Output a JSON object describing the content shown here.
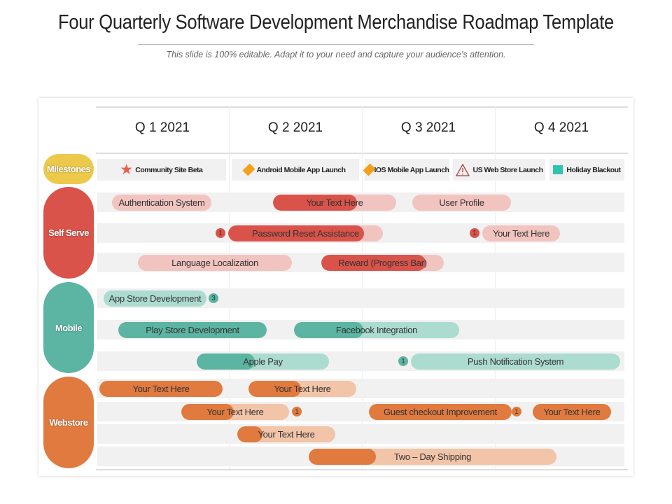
{
  "title": "Four Quarterly Software Development Merchandise Roadmap Template",
  "subtitle": "This slide is 100% editable. Adapt it to your need and capture your audience’s attention.",
  "quarters": [
    "Q 1 2021",
    "Q 2 2021",
    "Q 3 2021",
    "Q 4 2021"
  ],
  "colors": {
    "milestones": "#ecc94b",
    "self_serve": "#d9534a",
    "self_serve_light": "#f2c4c0",
    "mobile": "#5bb5a2",
    "mobile_light": "#acdcd0",
    "webstore": "#e07a3f",
    "webstore_light": "#f2c4a8"
  },
  "categories": {
    "milestones": "Milestones",
    "self_serve": "Self Serve",
    "mobile": "Mobile",
    "webstore": "Webstore"
  },
  "milestones": [
    {
      "label": "Community Site Beta",
      "icon": "star-icon"
    },
    {
      "label": "Android Mobile App Launch",
      "icon": "diamond-icon"
    },
    {
      "label": "IOS Mobile App Launch",
      "icon": "diamond-icon"
    },
    {
      "label": "US Web Store Launch",
      "icon": "warning-triangle-icon"
    },
    {
      "label": "Holiday Blackout",
      "icon": "square-icon"
    }
  ],
  "tasks": [
    {
      "group": "self_serve",
      "label": "Authentication System",
      "progress": 0
    },
    {
      "group": "self_serve",
      "label": "Your Text Here",
      "progress": 0.68
    },
    {
      "group": "self_serve",
      "label": "User Profile",
      "progress": 0
    },
    {
      "group": "self_serve",
      "label": "Password Reset Assistance",
      "progress": 0.88,
      "badge": "1"
    },
    {
      "group": "self_serve",
      "label": "Your Text Here",
      "progress": 0,
      "badge": "1"
    },
    {
      "group": "self_serve",
      "label": "Language Localization",
      "progress": 0
    },
    {
      "group": "self_serve",
      "label": "Reward (Progress Bar)",
      "progress": 0.85
    },
    {
      "group": "mobile",
      "label": "App Store Development",
      "progress": 0,
      "badge": "3"
    },
    {
      "group": "mobile",
      "label": "Play Store Development",
      "progress": 1
    },
    {
      "group": "mobile",
      "label": "Facebook Integration",
      "progress": 0.42
    },
    {
      "group": "mobile",
      "label": "Apple Pay",
      "progress": 0.44
    },
    {
      "group": "mobile",
      "label": "Push Notification System",
      "progress": 0,
      "badge": "1"
    },
    {
      "group": "webstore",
      "label": "Your Text Here",
      "progress": 1
    },
    {
      "group": "webstore",
      "label": "Your Text Here",
      "progress": 0.49
    },
    {
      "group": "webstore",
      "label": "Your Text Here",
      "progress": 0.49,
      "badge": "1"
    },
    {
      "group": "webstore",
      "label": "Guest checkout Improvement",
      "progress": 1,
      "badge": "1"
    },
    {
      "group": "webstore",
      "label": "Your Text Here",
      "progress": 1
    },
    {
      "group": "webstore",
      "label": "Your Text Here",
      "progress": 0.26
    },
    {
      "group": "webstore",
      "label": "Two – Day Shipping",
      "progress": 0.27
    }
  ]
}
